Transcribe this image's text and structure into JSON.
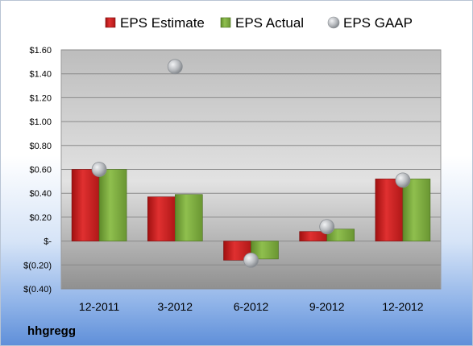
{
  "brand": "hhgregg",
  "chart_data": {
    "type": "bar",
    "categories": [
      "12-2011",
      "3-2012",
      "6-2012",
      "9-2012",
      "12-2012"
    ],
    "series": [
      {
        "name": "EPS Estimate",
        "type": "bar",
        "values": [
          0.6,
          0.37,
          -0.16,
          0.08,
          0.52
        ]
      },
      {
        "name": "EPS Actual",
        "type": "bar",
        "values": [
          0.6,
          0.39,
          -0.15,
          0.1,
          0.52
        ]
      },
      {
        "name": "EPS GAAP",
        "type": "scatter",
        "values": [
          0.6,
          1.46,
          -0.16,
          0.12,
          0.51
        ]
      }
    ],
    "yticks": [
      "$(0.40)",
      "$(0.20)",
      "$-",
      "$0.20",
      "$0.40",
      "$0.60",
      "$0.80",
      "$1.00",
      "$1.20",
      "$1.40",
      "$1.60"
    ],
    "ylim": [
      -0.4,
      1.6
    ],
    "ystep": 0.2,
    "legend_position": "top",
    "grid": true,
    "colors": {
      "estimate": "#cc1f1f",
      "actual": "#77a33a",
      "gaap": "#b5b8bc"
    }
  }
}
